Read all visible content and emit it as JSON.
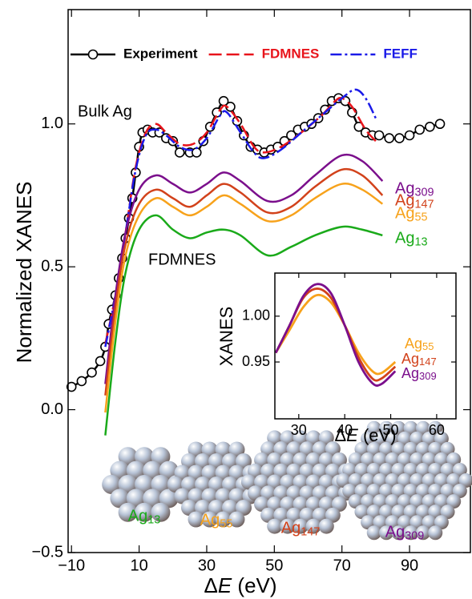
{
  "chart_data": [
    {
      "type": "line",
      "xlabel": "ΔE (eV)",
      "ylabel": "Normalized XANES",
      "xlim": [
        -11,
        108
      ],
      "ylim": [
        -0.5,
        1.4
      ],
      "xticks": [
        {
          "value": -10,
          "label": "−10"
        },
        10,
        30,
        50,
        70,
        90
      ],
      "yticks": [
        {
          "value": -0.5,
          "label": "−0.5"
        },
        {
          "value": 0,
          "label": "0.0"
        },
        0.5,
        {
          "value": 1,
          "label": "1.0"
        }
      ],
      "legend": "top",
      "annotations": [
        "Bulk Ag",
        "FDMNES"
      ],
      "particle_labels": [
        "Ag13",
        "Ag55",
        "Ag147",
        "Ag309"
      ],
      "particle_colors": [
        "#1aaa1a",
        "#f7a21b",
        "#d2421b",
        "#7b0f8c"
      ],
      "series": [
        {
          "name": "Experiment",
          "color": "#000000",
          "marker": "circle",
          "dash": "solid",
          "in_legend": true,
          "x": [
            -10,
            -7,
            -4,
            -1.5,
            0,
            1,
            2,
            3,
            4,
            5,
            6,
            7,
            8,
            9,
            10,
            11,
            12.5,
            14,
            16,
            18,
            20,
            22,
            25,
            27,
            29,
            31,
            33,
            35,
            37,
            39,
            41,
            43,
            45,
            47,
            49,
            51,
            53,
            55,
            57,
            59,
            61,
            63,
            65,
            67,
            69,
            71,
            73,
            75,
            77,
            79,
            81,
            84,
            87,
            90,
            93,
            96,
            99
          ],
          "values": [
            0.08,
            0.1,
            0.13,
            0.17,
            0.22,
            0.3,
            0.35,
            0.4,
            0.46,
            0.53,
            0.6,
            0.67,
            0.74,
            0.83,
            0.92,
            0.97,
            0.98,
            0.97,
            0.97,
            0.95,
            0.94,
            0.9,
            0.9,
            0.9,
            0.94,
            0.99,
            1.04,
            1.08,
            1.06,
            1.01,
            0.96,
            0.92,
            0.91,
            0.9,
            0.91,
            0.92,
            0.94,
            0.96,
            0.98,
            0.99,
            1.0,
            1.02,
            1.05,
            1.08,
            1.09,
            1.08,
            1.04,
            0.99,
            0.97,
            0.96,
            0.96,
            0.95,
            0.95,
            0.96,
            0.98,
            0.99,
            1.0
          ]
        },
        {
          "name": "FDMNES",
          "color": "#e8141b",
          "dash": "long-dash",
          "in_legend": true,
          "x": [
            0,
            3,
            6,
            9,
            12,
            15,
            18,
            22,
            26,
            30,
            34,
            36,
            40,
            44,
            47,
            52,
            58,
            64,
            68,
            70,
            73,
            77,
            80
          ],
          "values": [
            0.23,
            0.4,
            0.62,
            0.85,
            0.97,
            1.0,
            0.97,
            0.93,
            0.93,
            0.97,
            1.05,
            1.06,
            1.0,
            0.92,
            0.9,
            0.92,
            0.97,
            1.03,
            1.08,
            1.09,
            1.06,
            0.98,
            0.94
          ]
        },
        {
          "name": "FEFF",
          "color": "#1a1ae8",
          "dash": "dash-dot",
          "in_legend": true,
          "x": [
            0,
            3,
            6,
            9,
            12,
            15,
            18,
            22,
            26,
            30,
            34,
            36,
            40,
            44,
            47,
            52,
            58,
            64,
            70,
            74,
            77,
            80
          ],
          "values": [
            0.22,
            0.4,
            0.62,
            0.84,
            0.96,
            0.98,
            0.96,
            0.92,
            0.91,
            0.95,
            1.03,
            1.04,
            0.97,
            0.9,
            0.88,
            0.91,
            0.97,
            1.03,
            1.09,
            1.12,
            1.09,
            1.02
          ]
        },
        {
          "name": "Ag309",
          "color": "#7b0f8c",
          "dash": "solid",
          "in_legend": false,
          "x": [
            0,
            3,
            6,
            10,
            15,
            20,
            25,
            30,
            35,
            40,
            48,
            55,
            62,
            70,
            76,
            82
          ],
          "values": [
            0.09,
            0.4,
            0.62,
            0.77,
            0.82,
            0.79,
            0.76,
            0.79,
            0.83,
            0.8,
            0.73,
            0.75,
            0.82,
            0.89,
            0.87,
            0.8
          ]
        },
        {
          "name": "Ag147",
          "color": "#d2421b",
          "dash": "solid",
          "in_legend": false,
          "x": [
            0,
            3,
            6,
            10,
            15,
            20,
            25,
            30,
            35,
            40,
            48,
            55,
            62,
            70,
            76,
            82
          ],
          "values": [
            0.05,
            0.36,
            0.58,
            0.72,
            0.77,
            0.74,
            0.71,
            0.75,
            0.79,
            0.76,
            0.69,
            0.71,
            0.78,
            0.84,
            0.82,
            0.75
          ]
        },
        {
          "name": "Ag55",
          "color": "#f7a21b",
          "dash": "solid",
          "in_legend": false,
          "x": [
            0,
            3,
            6,
            10,
            15,
            20,
            25,
            30,
            35,
            40,
            48,
            55,
            62,
            70,
            76,
            82
          ],
          "values": [
            -0.01,
            0.31,
            0.54,
            0.68,
            0.74,
            0.71,
            0.68,
            0.71,
            0.75,
            0.72,
            0.66,
            0.68,
            0.74,
            0.79,
            0.77,
            0.72
          ]
        },
        {
          "name": "Ag13",
          "color": "#1aaa1a",
          "dash": "solid",
          "in_legend": false,
          "x": [
            0,
            3,
            6,
            10,
            15,
            20,
            25,
            30,
            35,
            40,
            48,
            55,
            62,
            70,
            76,
            82
          ],
          "values": [
            -0.09,
            0.24,
            0.48,
            0.63,
            0.68,
            0.63,
            0.6,
            0.62,
            0.63,
            0.61,
            0.54,
            0.57,
            0.61,
            0.64,
            0.63,
            0.61
          ]
        }
      ]
    },
    {
      "type": "line",
      "xlabel": "ΔE (eV)",
      "ylabel": "XANES",
      "xlim": [
        24.8,
        64.2
      ],
      "ylim": [
        0.888,
        1.047
      ],
      "xticks": [
        30,
        40,
        50,
        60
      ],
      "yticks": [
        0.95,
        {
          "value": 1,
          "label": "1.00"
        }
      ],
      "series": [
        {
          "name": "Ag55",
          "color": "#f7a21b",
          "dash": "solid",
          "in_legend": false,
          "x": [
            25,
            28,
            31,
            34,
            37,
            40,
            43,
            46,
            48,
            51
          ],
          "values": [
            0.96,
            0.985,
            1.01,
            1.023,
            1.015,
            0.99,
            0.96,
            0.94,
            0.938,
            0.95
          ]
        },
        {
          "name": "Ag147",
          "color": "#d2421b",
          "dash": "solid",
          "in_legend": false,
          "x": [
            25,
            28,
            31,
            34,
            37,
            40,
            43,
            46,
            48,
            51
          ],
          "values": [
            0.96,
            0.99,
            1.02,
            1.03,
            1.02,
            0.99,
            0.955,
            0.932,
            0.932,
            0.945
          ]
        },
        {
          "name": "Ag309",
          "color": "#7b0f8c",
          "dash": "solid",
          "in_legend": false,
          "x": [
            25,
            28,
            31,
            34,
            37,
            40,
            43,
            46,
            48,
            51
          ],
          "values": [
            0.96,
            0.99,
            1.022,
            1.035,
            1.025,
            0.99,
            0.95,
            0.927,
            0.926,
            0.94
          ]
        }
      ]
    }
  ]
}
